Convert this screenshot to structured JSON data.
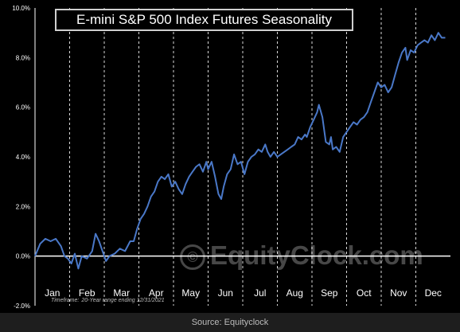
{
  "chart_data": {
    "type": "line",
    "title": "E-mini S&P 500 Index Futures Seasonality",
    "xlabel": "",
    "ylabel": "",
    "ylim": [
      -2.0,
      10.0
    ],
    "yticks": [
      "-2.0%",
      "0.0%",
      "2.0%",
      "4.0%",
      "6.0%",
      "8.0%",
      "10.0%"
    ],
    "ytick_values": [
      -2,
      0,
      2,
      4,
      6,
      8,
      10
    ],
    "categories": [
      "Jan",
      "Feb",
      "Mar",
      "Apr",
      "May",
      "Jun",
      "Jul",
      "Aug",
      "Sep",
      "Oct",
      "Nov",
      "Dec"
    ],
    "grid": "vertical month separators, dashed",
    "series": [
      {
        "name": "",
        "color": "#4a78c8",
        "points": [
          [
            0.0,
            0.0
          ],
          [
            0.15,
            0.5
          ],
          [
            0.3,
            0.7
          ],
          [
            0.45,
            0.6
          ],
          [
            0.6,
            0.7
          ],
          [
            0.75,
            0.4
          ],
          [
            0.85,
            0.0
          ],
          [
            0.95,
            -0.1
          ],
          [
            1.05,
            -0.3
          ],
          [
            1.15,
            0.1
          ],
          [
            1.25,
            -0.5
          ],
          [
            1.35,
            0.0
          ],
          [
            1.5,
            -0.1
          ],
          [
            1.65,
            0.2
          ],
          [
            1.75,
            0.9
          ],
          [
            1.85,
            0.6
          ],
          [
            1.95,
            0.2
          ],
          [
            2.05,
            -0.2
          ],
          [
            2.15,
            0.0
          ],
          [
            2.3,
            0.1
          ],
          [
            2.45,
            0.3
          ],
          [
            2.6,
            0.2
          ],
          [
            2.75,
            0.6
          ],
          [
            2.85,
            0.6
          ],
          [
            2.95,
            1.1
          ],
          [
            3.05,
            1.5
          ],
          [
            3.15,
            1.7
          ],
          [
            3.25,
            2.0
          ],
          [
            3.35,
            2.4
          ],
          [
            3.45,
            2.6
          ],
          [
            3.55,
            3.0
          ],
          [
            3.65,
            3.2
          ],
          [
            3.75,
            3.1
          ],
          [
            3.85,
            3.3
          ],
          [
            3.95,
            2.8
          ],
          [
            4.05,
            3.0
          ],
          [
            4.15,
            2.7
          ],
          [
            4.25,
            2.5
          ],
          [
            4.35,
            2.9
          ],
          [
            4.45,
            3.2
          ],
          [
            4.55,
            3.4
          ],
          [
            4.65,
            3.6
          ],
          [
            4.75,
            3.7
          ],
          [
            4.85,
            3.4
          ],
          [
            4.95,
            3.8
          ],
          [
            5.0,
            3.5
          ],
          [
            5.1,
            3.8
          ],
          [
            5.2,
            3.2
          ],
          [
            5.3,
            2.5
          ],
          [
            5.38,
            2.3
          ],
          [
            5.45,
            2.8
          ],
          [
            5.55,
            3.3
          ],
          [
            5.65,
            3.5
          ],
          [
            5.75,
            4.1
          ],
          [
            5.85,
            3.7
          ],
          [
            5.95,
            3.8
          ],
          [
            6.05,
            3.3
          ],
          [
            6.15,
            3.8
          ],
          [
            6.25,
            4.0
          ],
          [
            6.35,
            4.1
          ],
          [
            6.45,
            4.3
          ],
          [
            6.55,
            4.2
          ],
          [
            6.65,
            4.5
          ],
          [
            6.72,
            4.2
          ],
          [
            6.8,
            4.0
          ],
          [
            6.9,
            4.2
          ],
          [
            7.0,
            4.0
          ],
          [
            7.1,
            4.1
          ],
          [
            7.2,
            4.2
          ],
          [
            7.3,
            4.3
          ],
          [
            7.4,
            4.4
          ],
          [
            7.5,
            4.5
          ],
          [
            7.6,
            4.8
          ],
          [
            7.7,
            4.7
          ],
          [
            7.8,
            4.9
          ],
          [
            7.85,
            4.8
          ],
          [
            7.95,
            5.2
          ],
          [
            8.05,
            5.5
          ],
          [
            8.15,
            5.8
          ],
          [
            8.2,
            6.1
          ],
          [
            8.3,
            5.6
          ],
          [
            8.4,
            4.6
          ],
          [
            8.5,
            4.5
          ],
          [
            8.55,
            4.8
          ],
          [
            8.6,
            4.3
          ],
          [
            8.7,
            4.4
          ],
          [
            8.8,
            4.2
          ],
          [
            8.9,
            4.8
          ],
          [
            9.0,
            5.0
          ],
          [
            9.1,
            5.2
          ],
          [
            9.2,
            5.4
          ],
          [
            9.3,
            5.3
          ],
          [
            9.4,
            5.5
          ],
          [
            9.5,
            5.6
          ],
          [
            9.6,
            5.8
          ],
          [
            9.7,
            6.2
          ],
          [
            9.8,
            6.6
          ],
          [
            9.9,
            7.0
          ],
          [
            10.0,
            6.8
          ],
          [
            10.1,
            6.9
          ],
          [
            10.2,
            6.6
          ],
          [
            10.3,
            6.8
          ],
          [
            10.4,
            7.3
          ],
          [
            10.5,
            7.8
          ],
          [
            10.6,
            8.2
          ],
          [
            10.7,
            8.4
          ],
          [
            10.75,
            7.9
          ],
          [
            10.85,
            8.3
          ],
          [
            10.95,
            8.2
          ],
          [
            11.05,
            8.5
          ],
          [
            11.15,
            8.6
          ],
          [
            11.25,
            8.7
          ],
          [
            11.35,
            8.6
          ],
          [
            11.45,
            8.9
          ],
          [
            11.55,
            8.7
          ],
          [
            11.65,
            9.0
          ],
          [
            11.75,
            8.8
          ],
          [
            11.85,
            8.8
          ]
        ]
      }
    ],
    "annotations": {
      "timeframe_label": "Timeframe:",
      "timeframe_value": "20-Year range ending 12/31/2021",
      "watermark": "EquityClock.com"
    }
  },
  "source_caption": "Source: Equityclock"
}
